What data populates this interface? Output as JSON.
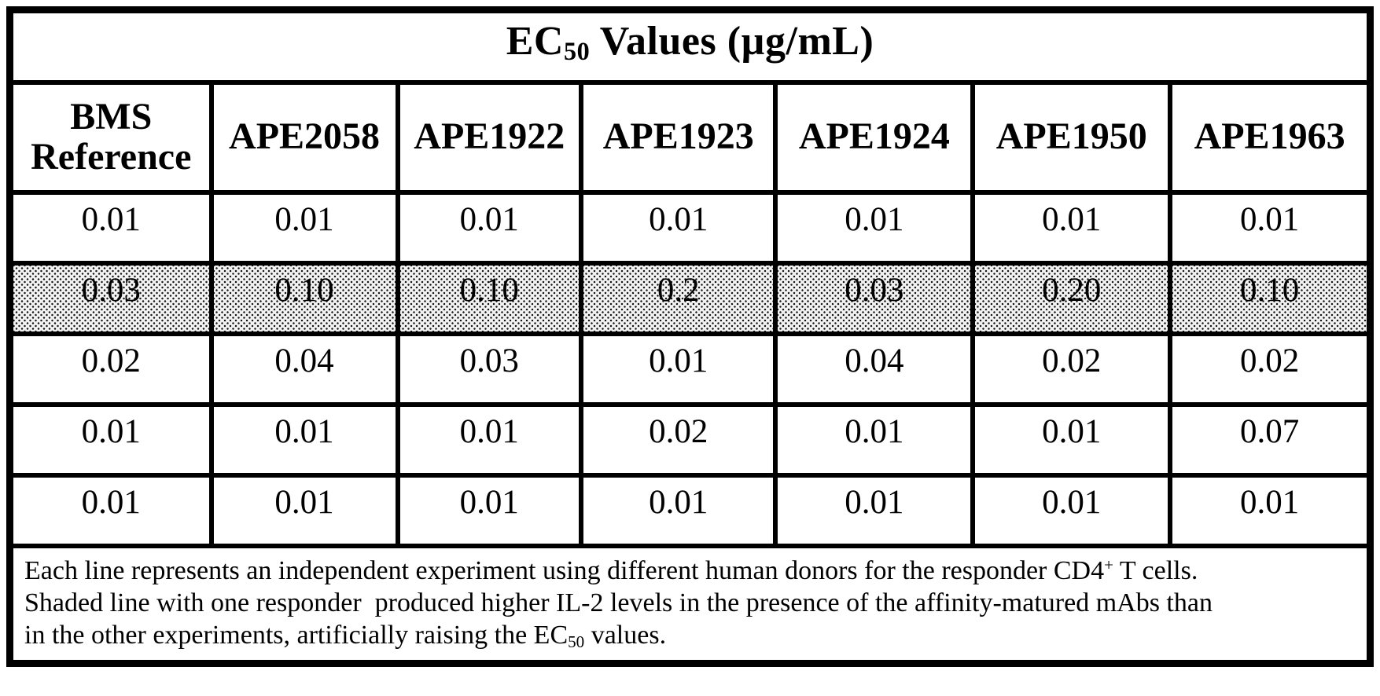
{
  "title": {
    "prefix": "EC",
    "subscript": "50",
    "suffix": " Values (µg/mL)"
  },
  "table": {
    "columns": [
      "BMS Reference",
      "APE2058",
      "APE1922",
      "APE1923",
      "APE1924",
      "APE1950",
      "APE1963"
    ],
    "rows": [
      {
        "shaded": false,
        "values": [
          "0.01",
          "0.01",
          "0.01",
          "0.01",
          "0.01",
          "0.01",
          "0.01"
        ]
      },
      {
        "shaded": true,
        "values": [
          "0.03",
          "0.10",
          "0.10",
          "0.2",
          "0.03",
          "0.20",
          "0.10"
        ]
      },
      {
        "shaded": false,
        "values": [
          "0.02",
          "0.04",
          "0.03",
          "0.01",
          "0.04",
          "0.02",
          "0.02"
        ]
      },
      {
        "shaded": false,
        "values": [
          "0.01",
          "0.01",
          "0.01",
          "0.02",
          "0.01",
          "0.01",
          "0.07"
        ]
      },
      {
        "shaded": false,
        "values": [
          "0.01",
          "0.01",
          "0.01",
          "0.01",
          "0.01",
          "0.01",
          "0.01"
        ]
      }
    ]
  },
  "footnote": {
    "line1_pre": "Each line represents an independent experiment using different human donors for the responder CD4",
    "line1_sup": "+",
    "line1_post": " T cells.",
    "line2": "Shaded line with one responder  produced higher IL-2 levels in the presence of the affinity-matured mAbs than",
    "line3_pre": "in the other experiments, artificially raising the EC",
    "line3_sub": "50",
    "line3_post": " values."
  },
  "colors": {
    "border": "#000000",
    "text": "#000000",
    "shaded_row_background": "#f2f2f2",
    "shaded_row_dots": "#151515",
    "page_background": "#ffffff"
  }
}
